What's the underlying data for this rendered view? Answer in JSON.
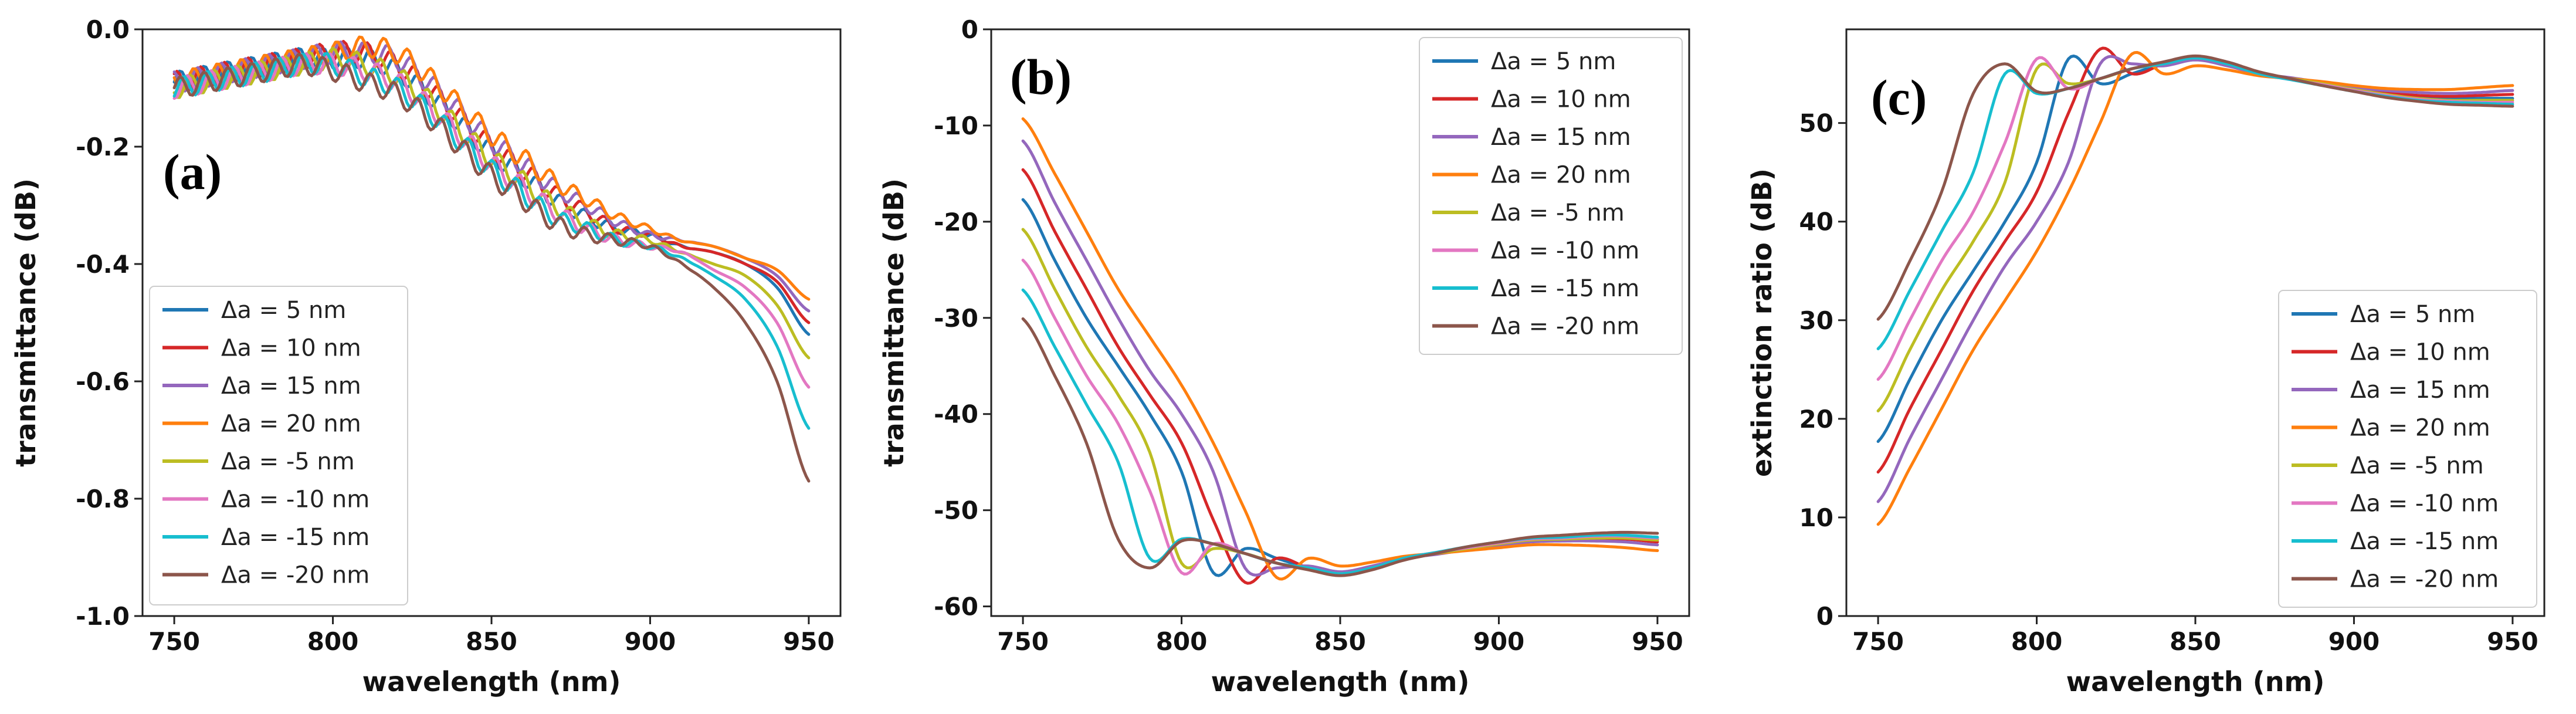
{
  "chart_data": [
    {
      "type": "line",
      "panel_label": "(a)",
      "xlabel": "wavelength (nm)",
      "ylabel": "transmittance (dB)",
      "xlim": [
        740,
        960
      ],
      "ylim": [
        -1.0,
        0.0
      ],
      "xticks": [
        750,
        800,
        850,
        900,
        950
      ],
      "xtick_labels": [
        "750",
        "800",
        "850",
        "900",
        "950"
      ],
      "yticks": [
        0.0,
        -0.2,
        -0.4,
        -0.6,
        -0.8,
        -1.0
      ],
      "ytick_labels": [
        "0.0",
        "-0.2",
        "-0.4",
        "-0.6",
        "-0.8",
        "-1.0"
      ],
      "legend_position": "lower-left",
      "x": [
        750,
        760,
        770,
        780,
        790,
        800,
        810,
        820,
        830,
        840,
        850,
        860,
        870,
        880,
        890,
        900,
        910,
        920,
        930,
        940,
        950
      ],
      "series": [
        {
          "name": "Δa = 5 nm",
          "color": "#1f77b4",
          "values": [
            -0.09,
            -0.08,
            -0.07,
            -0.06,
            -0.05,
            -0.05,
            -0.05,
            -0.07,
            -0.11,
            -0.16,
            -0.21,
            -0.25,
            -0.29,
            -0.32,
            -0.34,
            -0.35,
            -0.37,
            -0.38,
            -0.4,
            -0.44,
            -0.52
          ]
        },
        {
          "name": "Δa = 10 nm",
          "color": "#d62728",
          "values": [
            -0.09,
            -0.08,
            -0.07,
            -0.06,
            -0.05,
            -0.04,
            -0.04,
            -0.06,
            -0.1,
            -0.15,
            -0.2,
            -0.24,
            -0.28,
            -0.31,
            -0.34,
            -0.35,
            -0.37,
            -0.38,
            -0.4,
            -0.43,
            -0.5
          ]
        },
        {
          "name": "Δa = 15 nm",
          "color": "#9467bd",
          "values": [
            -0.09,
            -0.08,
            -0.07,
            -0.06,
            -0.05,
            -0.04,
            -0.04,
            -0.05,
            -0.09,
            -0.14,
            -0.19,
            -0.23,
            -0.27,
            -0.3,
            -0.33,
            -0.35,
            -0.36,
            -0.37,
            -0.39,
            -0.42,
            -0.48
          ]
        },
        {
          "name": "Δa = 20 nm",
          "color": "#ff7f0e",
          "values": [
            -0.09,
            -0.08,
            -0.07,
            -0.06,
            -0.05,
            -0.04,
            -0.03,
            -0.04,
            -0.08,
            -0.13,
            -0.18,
            -0.22,
            -0.26,
            -0.29,
            -0.32,
            -0.34,
            -0.36,
            -0.37,
            -0.39,
            -0.41,
            -0.46
          ]
        },
        {
          "name": "Δa = -5 nm",
          "color": "#bcbd22",
          "values": [
            -0.1,
            -0.09,
            -0.08,
            -0.07,
            -0.06,
            -0.05,
            -0.06,
            -0.08,
            -0.12,
            -0.17,
            -0.22,
            -0.26,
            -0.3,
            -0.33,
            -0.35,
            -0.36,
            -0.38,
            -0.4,
            -0.42,
            -0.47,
            -0.56
          ]
        },
        {
          "name": "Δa = -10 nm",
          "color": "#e377c2",
          "values": [
            -0.1,
            -0.09,
            -0.08,
            -0.07,
            -0.06,
            -0.06,
            -0.07,
            -0.09,
            -0.13,
            -0.18,
            -0.23,
            -0.27,
            -0.31,
            -0.34,
            -0.36,
            -0.37,
            -0.38,
            -0.41,
            -0.44,
            -0.5,
            -0.61
          ]
        },
        {
          "name": "Δa = -15 nm",
          "color": "#17becf",
          "values": [
            -0.1,
            -0.09,
            -0.08,
            -0.07,
            -0.06,
            -0.06,
            -0.08,
            -0.1,
            -0.14,
            -0.19,
            -0.24,
            -0.28,
            -0.32,
            -0.34,
            -0.36,
            -0.37,
            -0.39,
            -0.42,
            -0.46,
            -0.54,
            -0.68
          ]
        },
        {
          "name": "Δa = -20 nm",
          "color": "#8c564b",
          "values": [
            -0.1,
            -0.09,
            -0.08,
            -0.07,
            -0.06,
            -0.07,
            -0.09,
            -0.11,
            -0.15,
            -0.2,
            -0.25,
            -0.29,
            -0.33,
            -0.35,
            -0.36,
            -0.37,
            -0.4,
            -0.44,
            -0.5,
            -0.6,
            -0.77
          ]
        }
      ]
    },
    {
      "type": "line",
      "panel_label": "(b)",
      "xlabel": "wavelength (nm)",
      "ylabel": "transmittance (dB)",
      "xlim": [
        740,
        960
      ],
      "ylim": [
        -61,
        0
      ],
      "xticks": [
        750,
        800,
        850,
        900,
        950
      ],
      "xtick_labels": [
        "750",
        "800",
        "850",
        "900",
        "950"
      ],
      "yticks": [
        0,
        -10,
        -20,
        -30,
        -40,
        -50,
        -60
      ],
      "ytick_labels": [
        "0",
        "-10",
        "-20",
        "-30",
        "-40",
        "-50",
        "-60"
      ],
      "legend_position": "upper-right",
      "x": [
        750,
        760,
        770,
        780,
        790,
        800,
        810,
        820,
        830,
        840,
        850,
        860,
        870,
        880,
        890,
        900,
        910,
        920,
        930,
        940,
        950
      ],
      "series": [
        {
          "name": "Δa = 5 nm",
          "color": "#1f77b4",
          "values": [
            -17.7,
            -24,
            -30,
            -35,
            -40,
            -46,
            -56.5,
            -54,
            -55,
            -56,
            -56.6,
            -56,
            -55,
            -54.5,
            -54,
            -53.6,
            -53.2,
            -53.0,
            -52.8,
            -52.8,
            -53.0
          ]
        },
        {
          "name": "Δa = 10 nm",
          "color": "#d62728",
          "values": [
            -14.6,
            -21,
            -27,
            -33,
            -38,
            -43,
            -51,
            -57.5,
            -55,
            -56,
            -56.6,
            -56,
            -55,
            -54.5,
            -54,
            -53.6,
            -53.2,
            -53.1,
            -53.0,
            -53.0,
            -53.3
          ]
        },
        {
          "name": "Δa = 15 nm",
          "color": "#9467bd",
          "values": [
            -11.6,
            -18,
            -24,
            -30,
            -35.5,
            -40,
            -46,
            -56,
            -56,
            -55.8,
            -56.4,
            -55.8,
            -55,
            -54.6,
            -54.1,
            -53.7,
            -53.3,
            -53.2,
            -53.2,
            -53.3,
            -53.6
          ]
        },
        {
          "name": "Δa = 20 nm",
          "color": "#ff7f0e",
          "values": [
            -9.3,
            -15,
            -21,
            -27,
            -32,
            -37,
            -43,
            -50,
            -57,
            -55,
            -55.8,
            -55.4,
            -54.8,
            -54.5,
            -54.2,
            -53.9,
            -53.6,
            -53.6,
            -53.7,
            -53.9,
            -54.2
          ]
        },
        {
          "name": "Δa = -5 nm",
          "color": "#bcbd22",
          "values": [
            -20.8,
            -27,
            -33,
            -38,
            -44,
            -55.5,
            -54,
            -54.5,
            -55.5,
            -56,
            -56.6,
            -56,
            -55,
            -54.5,
            -54,
            -53.5,
            -53.1,
            -53.0,
            -52.9,
            -52.9,
            -53.1
          ]
        },
        {
          "name": "Δa = -10 nm",
          "color": "#e377c2",
          "values": [
            -24.0,
            -30,
            -36,
            -41,
            -48,
            -56.5,
            -53.5,
            -54.5,
            -55.5,
            -56,
            -56.6,
            -56,
            -55,
            -54.4,
            -53.9,
            -53.4,
            -53.0,
            -52.9,
            -52.7,
            -52.7,
            -52.9
          ]
        },
        {
          "name": "Δa = -15 nm",
          "color": "#17becf",
          "values": [
            -27.1,
            -33,
            -39,
            -45,
            -55,
            -53,
            -53.5,
            -54.5,
            -55.5,
            -56,
            -56.6,
            -56,
            -55,
            -54.4,
            -53.8,
            -53.3,
            -52.9,
            -52.8,
            -52.6,
            -52.6,
            -52.8
          ]
        },
        {
          "name": "Δa = -20 nm",
          "color": "#8c564b",
          "values": [
            -30.1,
            -36,
            -43,
            -53,
            -56,
            -53.2,
            -53.5,
            -54.5,
            -55.5,
            -56.2,
            -56.8,
            -56.2,
            -55.2,
            -54.5,
            -53.8,
            -53.3,
            -52.8,
            -52.6,
            -52.4,
            -52.3,
            -52.4
          ]
        }
      ]
    },
    {
      "type": "line",
      "panel_label": "(c)",
      "xlabel": "wavelength (nm)",
      "ylabel": "extinction ratio (dB)",
      "xlim": [
        740,
        960
      ],
      "ylim": [
        0,
        59.5
      ],
      "xticks": [
        750,
        800,
        850,
        900,
        950
      ],
      "xtick_labels": [
        "750",
        "800",
        "850",
        "900",
        "950"
      ],
      "yticks": [
        0,
        10,
        20,
        30,
        40,
        50
      ],
      "ytick_labels": [
        "0",
        "10",
        "20",
        "30",
        "40",
        "50"
      ],
      "legend_position": "lower-right",
      "x": [
        750,
        760,
        770,
        780,
        790,
        800,
        810,
        820,
        830,
        840,
        850,
        860,
        870,
        880,
        890,
        900,
        910,
        920,
        930,
        940,
        950
      ],
      "series": [
        {
          "name": "Δa = 5 nm",
          "color": "#1f77b4",
          "values": [
            17.7,
            24,
            30,
            35,
            40,
            46,
            56.5,
            54,
            55,
            56,
            56.6,
            56,
            55,
            54.5,
            54,
            53.5,
            53.0,
            52.6,
            52.5,
            52.5,
            52.5
          ]
        },
        {
          "name": "Δa = 10 nm",
          "color": "#d62728",
          "values": [
            14.6,
            21,
            27,
            33,
            38,
            43,
            51,
            57.5,
            55,
            56,
            56.6,
            56,
            55,
            54.5,
            54,
            53.5,
            53.1,
            52.8,
            52.7,
            52.8,
            52.9
          ]
        },
        {
          "name": "Δa = 15 nm",
          "color": "#9467bd",
          "values": [
            11.6,
            18,
            24,
            30,
            35.5,
            40,
            46,
            56,
            56,
            55.8,
            56.4,
            55.8,
            55,
            54.6,
            54.1,
            53.6,
            53.3,
            53.1,
            53.0,
            53.1,
            53.3
          ]
        },
        {
          "name": "Δa = 20 nm",
          "color": "#ff7f0e",
          "values": [
            9.3,
            15,
            21,
            27,
            32,
            37,
            43,
            50,
            57,
            55,
            55.8,
            55.4,
            54.8,
            54.5,
            54.2,
            53.8,
            53.5,
            53.4,
            53.4,
            53.6,
            53.8
          ]
        },
        {
          "name": "Δa = -5 nm",
          "color": "#bcbd22",
          "values": [
            20.8,
            27,
            33,
            38,
            44,
            55.5,
            54,
            54.5,
            55.5,
            56,
            56.6,
            56,
            55,
            54.5,
            54,
            53.4,
            52.9,
            52.5,
            52.3,
            52.3,
            52.3
          ]
        },
        {
          "name": "Δa = -10 nm",
          "color": "#e377c2",
          "values": [
            24.0,
            30,
            36,
            41,
            48,
            56.5,
            53.5,
            54.5,
            55.5,
            56,
            56.6,
            56,
            55,
            54.4,
            53.9,
            53.3,
            52.8,
            52.4,
            52.2,
            52.1,
            52.1
          ]
        },
        {
          "name": "Δa = -15 nm",
          "color": "#17becf",
          "values": [
            27.1,
            33,
            39,
            45,
            55,
            53,
            53.5,
            54.5,
            55.5,
            56,
            56.6,
            56,
            55,
            54.4,
            53.8,
            53.2,
            52.7,
            52.3,
            52.1,
            52.0,
            51.9
          ]
        },
        {
          "name": "Δa = -20 nm",
          "color": "#8c564b",
          "values": [
            30.1,
            36,
            43,
            53,
            56,
            53.2,
            53.5,
            54.5,
            55.5,
            56.2,
            56.8,
            56.2,
            55.2,
            54.5,
            53.8,
            53.2,
            52.6,
            52.2,
            51.9,
            51.8,
            51.7
          ]
        }
      ]
    }
  ]
}
